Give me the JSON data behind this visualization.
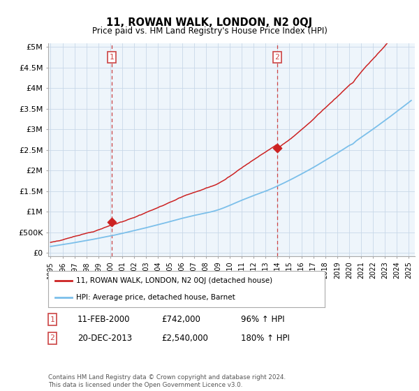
{
  "title": "11, ROWAN WALK, LONDON, N2 0QJ",
  "subtitle": "Price paid vs. HM Land Registry's House Price Index (HPI)",
  "ylabel_ticks": [
    "£0",
    "£500K",
    "£1M",
    "£1.5M",
    "£2M",
    "£2.5M",
    "£3M",
    "£3.5M",
    "£4M",
    "£4.5M",
    "£5M"
  ],
  "ytick_vals": [
    0,
    500000,
    1000000,
    1500000,
    2000000,
    2500000,
    3000000,
    3500000,
    4000000,
    4500000,
    5000000
  ],
  "ymax": 5100000,
  "ymin": -80000,
  "sale1_date": 2000.12,
  "sale1_price": 742000,
  "sale2_date": 2013.97,
  "sale2_price": 2540000,
  "hpi_color": "#7bbfea",
  "price_color": "#cc2222",
  "dashed_color": "#cc4444",
  "background_chart": "#eef5fb",
  "grid_color": "#c8d8e8",
  "legend_text1": "11, ROWAN WALK, LONDON, N2 0QJ (detached house)",
  "legend_text2": "HPI: Average price, detached house, Barnet",
  "annotation1_label": "1",
  "annotation1_date": "11-FEB-2000",
  "annotation1_price": "£742,000",
  "annotation1_hpi": "96% ↑ HPI",
  "annotation2_label": "2",
  "annotation2_date": "20-DEC-2013",
  "annotation2_price": "£2,540,000",
  "annotation2_hpi": "180% ↑ HPI",
  "footer": "Contains HM Land Registry data © Crown copyright and database right 2024.\nThis data is licensed under the Open Government Licence v3.0.",
  "xmin_year": 1994.8,
  "xmax_year": 2025.5,
  "xtick_years": [
    1995,
    1996,
    1997,
    1998,
    1999,
    2000,
    2001,
    2002,
    2003,
    2004,
    2005,
    2006,
    2007,
    2008,
    2009,
    2010,
    2011,
    2012,
    2013,
    2014,
    2015,
    2016,
    2017,
    2018,
    2019,
    2020,
    2021,
    2022,
    2023,
    2024,
    2025
  ]
}
